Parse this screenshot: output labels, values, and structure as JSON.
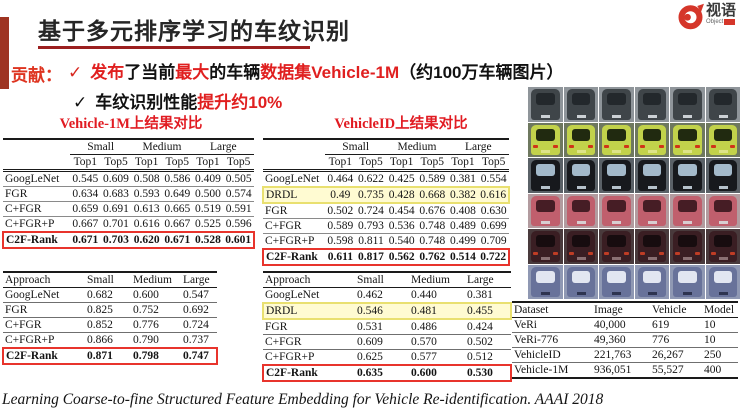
{
  "slide": {
    "title": "基于多元排序学习的车纹识别",
    "logo": {
      "brand": "视语",
      "sub": "Object"
    },
    "contribution_label": "贡献：",
    "bullet1": {
      "check": "✓",
      "segments": [
        {
          "t": "发布"
        },
        {
          "t": "了当前"
        },
        {
          "t": "最大"
        },
        {
          "t": "的车辆"
        },
        {
          "t": "数据集Vehicle-1M"
        },
        {
          "t": "（约100万车辆图片）"
        }
      ]
    },
    "bullet2": {
      "check": "✓",
      "segments": [
        {
          "t": "车纹识别性能"
        },
        {
          "t": "提升约10%"
        }
      ]
    },
    "caption": "Learning Coarse-to-fine Structured Feature Embedding for Vehicle Re-identification. AAAI 2018"
  },
  "colors": {
    "accent_bar": "#9e3422",
    "title_underline": "#9b1f1f",
    "bullet_red": "#e01f1f",
    "table_title_red": "#e11b22",
    "result_box_red": "#e8342c",
    "highlight_yellow": "#e9e070",
    "logo_red": "#d5362a"
  },
  "tables": {
    "v1m_top": {
      "title": "Vehicle-1M上结果对比",
      "groups": [
        "Small",
        "Medium",
        "Large"
      ],
      "subheaders": [
        "Top1",
        "Top5",
        "Top1",
        "Top5",
        "Top1",
        "Top5"
      ],
      "rows": [
        {
          "label": "GoogLeNet",
          "values": [
            "0.545",
            "0.609",
            "0.508",
            "0.586",
            "0.409",
            "0.505"
          ]
        },
        {
          "label": "FGR",
          "values": [
            "0.634",
            "0.683",
            "0.593",
            "0.649",
            "0.500",
            "0.574"
          ]
        },
        {
          "label": "C+FGR",
          "values": [
            "0.659",
            "0.691",
            "0.613",
            "0.665",
            "0.519",
            "0.591"
          ]
        },
        {
          "label": "C+FGR+P",
          "values": [
            "0.667",
            "0.701",
            "0.616",
            "0.667",
            "0.525",
            "0.596"
          ]
        },
        {
          "label": "C2F-Rank",
          "values": [
            "0.671",
            "0.703",
            "0.620",
            "0.671",
            "0.528",
            "0.601"
          ],
          "style": "box"
        }
      ]
    },
    "vid_top": {
      "title": "VehicleID上结果对比",
      "groups": [
        "Small",
        "Medium",
        "Large"
      ],
      "subheaders": [
        "Top1",
        "Top5",
        "Top1",
        "Top5",
        "Top1",
        "Top5"
      ],
      "rows": [
        {
          "label": "GoogLeNet",
          "values": [
            "0.464",
            "0.622",
            "0.425",
            "0.589",
            "0.381",
            "0.554"
          ]
        },
        {
          "label": "DRDL",
          "values": [
            "0.49",
            "0.735",
            "0.428",
            "0.668",
            "0.382",
            "0.616"
          ],
          "style": "yellow"
        },
        {
          "label": "FGR",
          "values": [
            "0.502",
            "0.724",
            "0.454",
            "0.676",
            "0.408",
            "0.630"
          ]
        },
        {
          "label": "C+FGR",
          "values": [
            "0.589",
            "0.793",
            "0.536",
            "0.748",
            "0.489",
            "0.699"
          ]
        },
        {
          "label": "C+FGR+P",
          "values": [
            "0.598",
            "0.811",
            "0.540",
            "0.748",
            "0.499",
            "0.709"
          ]
        },
        {
          "label": "C2F-Rank",
          "values": [
            "0.611",
            "0.817",
            "0.562",
            "0.762",
            "0.514",
            "0.722"
          ],
          "style": "box"
        }
      ]
    },
    "v1m_map": {
      "header": [
        "Approach",
        "Small",
        "Medium",
        "Large"
      ],
      "rows": [
        {
          "label": "GoogLeNet",
          "values": [
            "0.682",
            "0.600",
            "0.547"
          ]
        },
        {
          "label": "FGR",
          "values": [
            "0.825",
            "0.752",
            "0.692"
          ]
        },
        {
          "label": "C+FGR",
          "values": [
            "0.852",
            "0.776",
            "0.724"
          ]
        },
        {
          "label": "C+FGR+P",
          "values": [
            "0.866",
            "0.790",
            "0.737"
          ]
        },
        {
          "label": "C2F-Rank",
          "values": [
            "0.871",
            "0.798",
            "0.747"
          ],
          "style": "box"
        }
      ]
    },
    "vid_map": {
      "header": [
        "Approach",
        "Small",
        "Medium",
        "Large"
      ],
      "rows": [
        {
          "label": "GoogLeNet",
          "values": [
            "0.462",
            "0.440",
            "0.381"
          ]
        },
        {
          "label": "DRDL",
          "values": [
            "0.546",
            "0.481",
            "0.455"
          ],
          "style": "yellow"
        },
        {
          "label": "FGR",
          "values": [
            "0.531",
            "0.486",
            "0.424"
          ]
        },
        {
          "label": "C+FGR",
          "values": [
            "0.609",
            "0.570",
            "0.502"
          ]
        },
        {
          "label": "C+FGR+P",
          "values": [
            "0.625",
            "0.577",
            "0.512"
          ]
        },
        {
          "label": "C2F-Rank",
          "values": [
            "0.635",
            "0.600",
            "0.530"
          ],
          "style": "box"
        }
      ]
    },
    "datasets": {
      "header": [
        "Dataset",
        "Image",
        "Vehicle",
        "Model"
      ],
      "rows": [
        {
          "label": "VeRi",
          "values": [
            "40,000",
            "619",
            "10"
          ]
        },
        {
          "label": "VeRi-776",
          "values": [
            "49,360",
            "776",
            "10"
          ]
        },
        {
          "label": "VehicleID",
          "values": [
            "221,763",
            "26,267",
            "250"
          ]
        },
        {
          "label": "Vehicle-1M",
          "values": [
            "936,051",
            "55,527",
            "400"
          ]
        }
      ]
    }
  },
  "photo_grid": {
    "columns": 6,
    "rows": [
      {
        "name": "gray-sedans-front",
        "view": "front",
        "bg": "#8f959a",
        "body": "#3f4549",
        "glass": "#23282c",
        "plate": "#ccd1d5"
      },
      {
        "name": "yellow-green-hatchbacks-rear",
        "view": "rear",
        "bg": "#6e785f",
        "body": "#c2d24b",
        "glass": "#212a10",
        "plate": "#dde489",
        "light": "#d03418"
      },
      {
        "name": "dark-box-trucks-front",
        "view": "front",
        "bg": "#5a6167",
        "body": "#17191d",
        "glass": "#a3b9ca",
        "plate": "#b6c2cc"
      },
      {
        "name": "pink-sedans-front",
        "view": "front",
        "bg": "#b29b9f",
        "body": "#c05f6d",
        "glass": "#461d25",
        "plate": "#d8ced1"
      },
      {
        "name": "dark-red-hatchbacks-rear",
        "view": "rear",
        "bg": "#493a3c",
        "body": "#3a1e23",
        "glass": "#170c0f",
        "plate": "#8a7073",
        "light": "#bf3d25"
      },
      {
        "name": "blue-gray-vans-front",
        "view": "front",
        "bg": "#8f98b3",
        "body": "#68729a",
        "glass": "#e2e6f1",
        "plate": "#2e3450"
      }
    ]
  }
}
